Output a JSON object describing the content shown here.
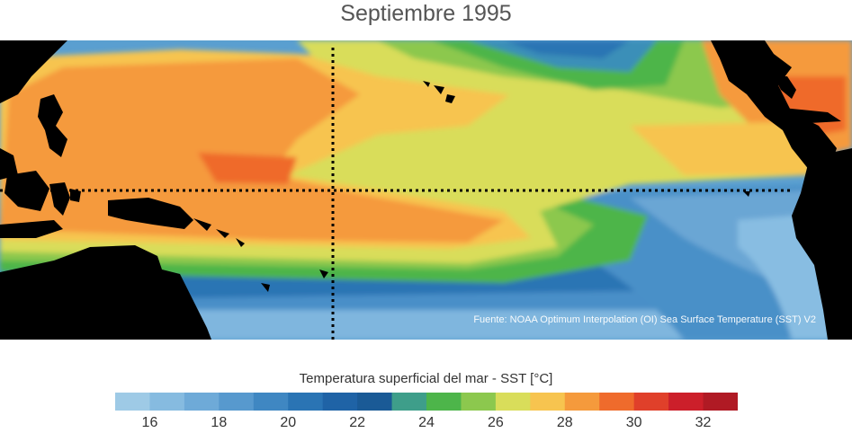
{
  "title": "Septiembre 1995",
  "source_note": "Fuente: NOAA Optimum Interpolation (OI) Sea Surface Temperature (SST) V2",
  "colorbar": {
    "title": "Temperatura superficial del mar - SST  [°C]",
    "min": 15,
    "max": 33,
    "colors": [
      "#9ecae6",
      "#86bbe0",
      "#6eaad8",
      "#5799ce",
      "#3f87c2",
      "#2a74b4",
      "#1f63a6",
      "#1a5a96",
      "#3e9e8a",
      "#4db54a",
      "#8cc84e",
      "#d9dd5a",
      "#f7c44f",
      "#f59a3c",
      "#ef6b2c",
      "#e0402a",
      "#cc1f2a",
      "#b01a24"
    ],
    "tick_labels": [
      "16",
      "18",
      "20",
      "22",
      "24",
      "26",
      "28",
      "30",
      "32"
    ],
    "tick_values": [
      16,
      18,
      20,
      22,
      24,
      26,
      28,
      30,
      32
    ]
  },
  "map": {
    "region": "Tropical Pacific Ocean",
    "land_color": "#000000",
    "reference_lines": [
      "Equator",
      "Date line (180°)"
    ]
  }
}
